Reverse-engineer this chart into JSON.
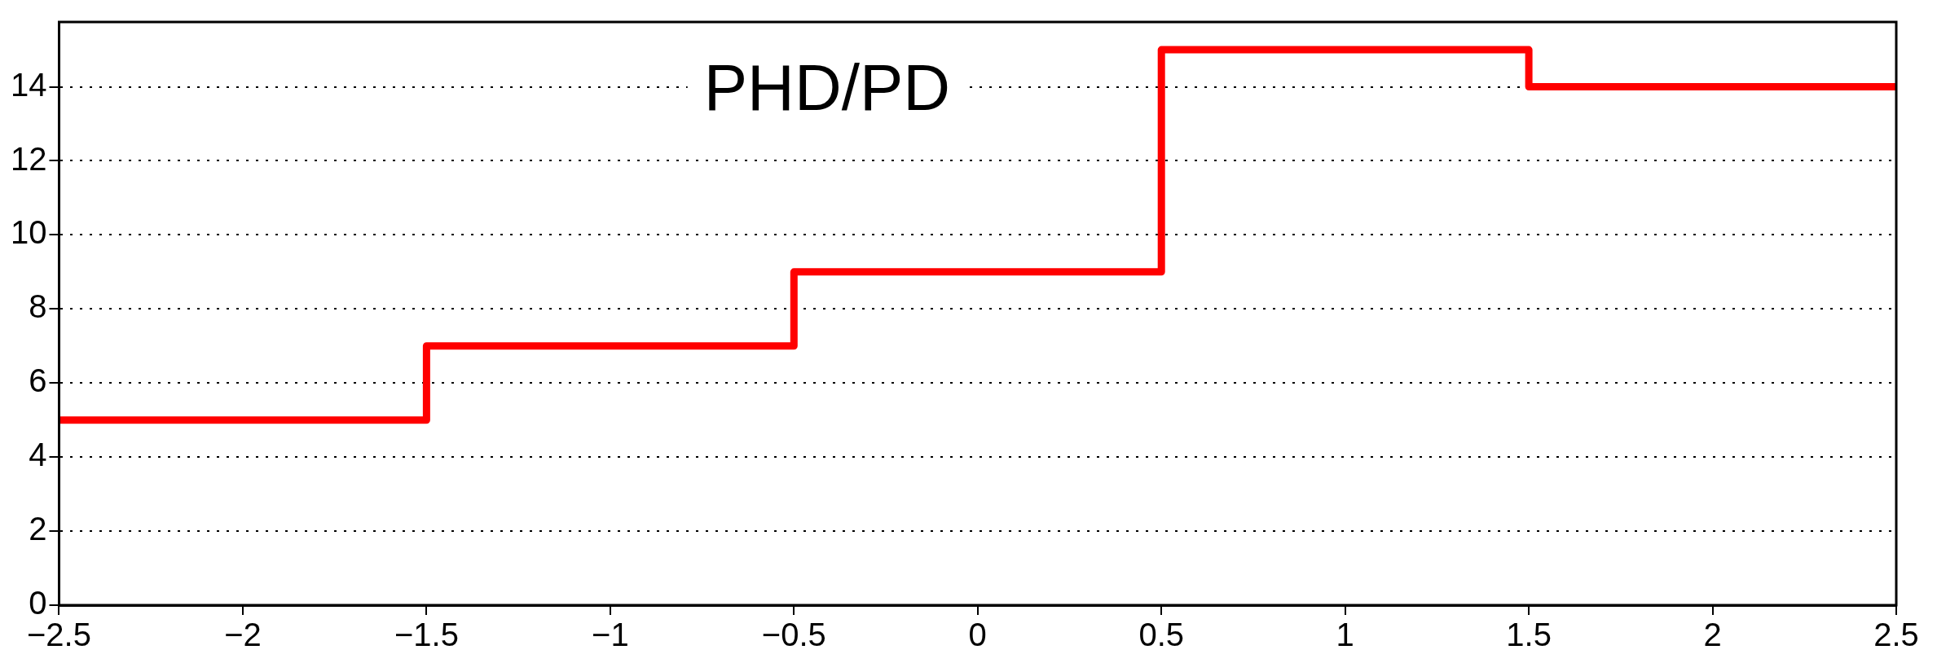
{
  "chart_data": {
    "type": "histogram",
    "title": "PHD/PD",
    "bins": [
      -2.5,
      -1.5,
      -0.5,
      0.5,
      1.5,
      2.5
    ],
    "values": [
      5,
      7,
      9,
      15,
      14
    ],
    "color": "#ff0000",
    "xlim": [
      -2.5,
      2.5
    ],
    "xticks": [
      {
        "value": -2.5,
        "label": "−2.5"
      },
      {
        "value": -2,
        "label": "−2"
      },
      {
        "value": -1.5,
        "label": "−1.5"
      },
      {
        "value": -1,
        "label": "−1"
      },
      {
        "value": -0.5,
        "label": "−0.5"
      },
      0,
      0.5,
      1,
      1.5,
      2,
      2.5
    ],
    "ylim": [
      0,
      15.75
    ],
    "yticks": [
      0,
      2,
      4,
      6,
      8,
      10,
      12,
      14
    ],
    "grid": "y"
  }
}
